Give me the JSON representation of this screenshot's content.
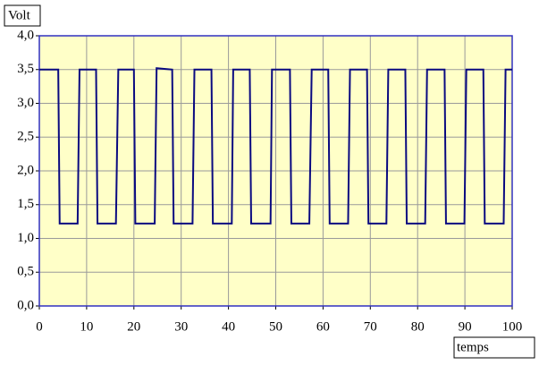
{
  "chart_data": {
    "type": "line",
    "y_label": "Volt",
    "x_label": "temps",
    "x": [
      0,
      4.0,
      4.3,
      8.1,
      8.5,
      12.0,
      12.3,
      16.2,
      16.7,
      20.0,
      20.3,
      24.4,
      24.8,
      28.1,
      28.4,
      32.4,
      32.8,
      36.4,
      36.7,
      40.7,
      41.0,
      44.5,
      44.8,
      48.9,
      49.2,
      53.0,
      53.3,
      57.1,
      57.6,
      61.1,
      61.4,
      65.3,
      65.7,
      69.3,
      69.6,
      73.4,
      73.8,
      77.4,
      77.7,
      81.6,
      82.0,
      85.7,
      86.0,
      89.9,
      90.3,
      93.9,
      94.2,
      98.2,
      98.6,
      100
    ],
    "series": [
      {
        "color": "#0a0a80",
        "values": [
          3.5,
          3.5,
          1.22,
          1.22,
          3.5,
          3.5,
          1.22,
          1.22,
          3.5,
          3.5,
          1.22,
          1.22,
          3.52,
          3.5,
          1.22,
          1.22,
          3.5,
          3.5,
          1.22,
          1.22,
          3.5,
          3.5,
          1.22,
          1.22,
          3.5,
          3.5,
          1.22,
          1.22,
          3.5,
          3.5,
          1.22,
          1.22,
          3.5,
          3.5,
          1.22,
          1.22,
          3.5,
          3.5,
          1.22,
          1.22,
          3.5,
          3.5,
          1.22,
          1.22,
          3.5,
          3.5,
          1.22,
          1.22,
          3.5,
          3.5
        ]
      }
    ],
    "xlim": [
      0,
      100
    ],
    "xticks": [
      0,
      10,
      20,
      30,
      40,
      50,
      60,
      70,
      80,
      90,
      100
    ],
    "ylim": [
      0,
      4
    ],
    "yticks": [
      {
        "value": 0,
        "label": "0,0"
      },
      {
        "value": 0.5,
        "label": "0,5"
      },
      {
        "value": 1,
        "label": "1,0"
      },
      {
        "value": 1.5,
        "label": "1,5"
      },
      {
        "value": 2,
        "label": "2,0"
      },
      {
        "value": 2.5,
        "label": "2,5"
      },
      {
        "value": 3,
        "label": "3,0"
      },
      {
        "value": 3.5,
        "label": "3,5"
      },
      {
        "value": 4,
        "label": "4,0"
      }
    ],
    "grid": true,
    "background": "#ffffc8"
  }
}
